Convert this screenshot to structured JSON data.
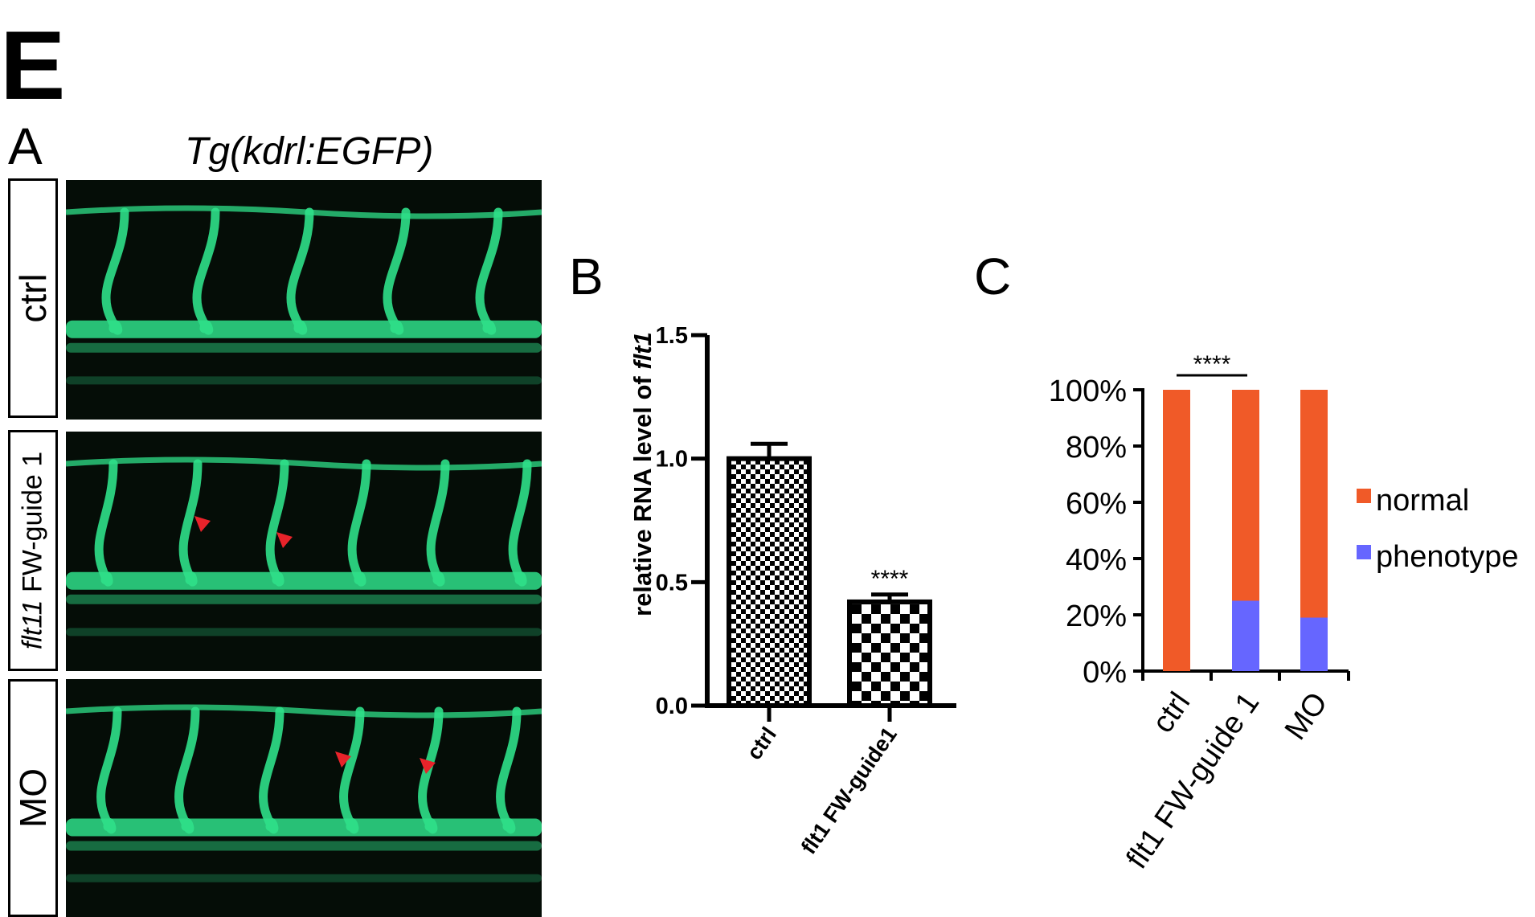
{
  "figure": {
    "label": "E"
  },
  "panel_a": {
    "label": "A",
    "title": "Tg(kdrl:EGFP)",
    "rows": [
      {
        "label": "ctrl",
        "label_italic": "",
        "arrowheads": 0
      },
      {
        "label": " FW-guide 1",
        "label_italic": "flt11",
        "arrowheads": 2
      },
      {
        "label": "MO",
        "label_italic": "",
        "arrowheads": 2
      }
    ],
    "colors": {
      "vessel": "#2fe08a",
      "background": "#050d07",
      "arrowhead": "#e8232a"
    }
  },
  "panel_b": {
    "label": "B",
    "ylabel_prefix": "relative RNA level of ",
    "ylabel_italic": "flt1",
    "significance": "****"
  },
  "panel_c": {
    "label": "C",
    "significance": "****",
    "legend": [
      {
        "name": "normal",
        "color": "#f05a28"
      },
      {
        "name": "phenotype",
        "color": "#6666ff"
      }
    ]
  },
  "chart_data": [
    {
      "type": "bar",
      "panel": "B",
      "categories": [
        "ctrl",
        "flt1 FW-guide1"
      ],
      "values": [
        1.0,
        0.42
      ],
      "errors": [
        0.06,
        0.03
      ],
      "ylim": [
        0.0,
        1.5
      ],
      "yticks": [
        "0.0",
        "0.5",
        "1.0",
        "1.5"
      ],
      "xlabel": "",
      "ylabel": "relative RNA level of flt1",
      "annotations": [
        "****"
      ]
    },
    {
      "type": "bar",
      "stacked": true,
      "panel": "C",
      "categories": [
        "ctrl",
        "flt1 FW-guide 1",
        "MO"
      ],
      "series": [
        {
          "name": "phenotype",
          "values": [
            0,
            25,
            19
          ]
        },
        {
          "name": "normal",
          "values": [
            100,
            75,
            81
          ]
        }
      ],
      "ylim": [
        0,
        100
      ],
      "yticks": [
        "0%",
        "20%",
        "40%",
        "60%",
        "80%",
        "100%"
      ],
      "legend_position": "right",
      "annotations": [
        "****"
      ]
    }
  ]
}
